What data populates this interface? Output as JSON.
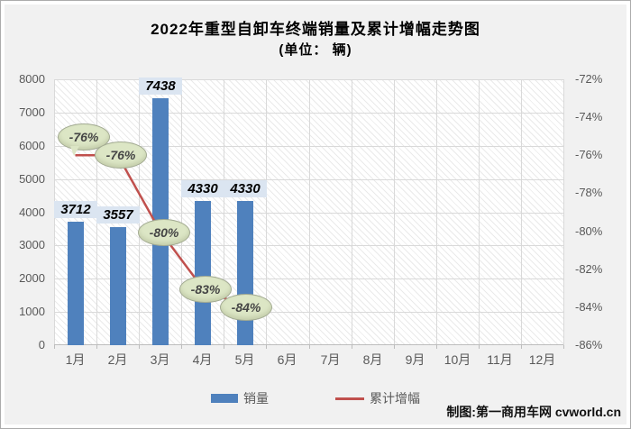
{
  "title": "2022年重型自卸车终端销量及累计增幅走势图",
  "subtitle": "(单位： 辆)",
  "watermark": "制图:第一商用车网 cvworld.cn",
  "legend": {
    "bars": "销量",
    "line": "累计增幅"
  },
  "colors": {
    "bar": "#4f81bd",
    "line": "#c0504d",
    "bar_label_bg": "#dbe5f1",
    "bubble_fill": "#dce6c5",
    "bubble_border": "#a3ab92",
    "axis_text": "#595959",
    "grid": "#d9d9d9",
    "canvas_bg": "#f1f1f1"
  },
  "chart_data": {
    "type": "bar+line combo",
    "categories": [
      "1月",
      "2月",
      "3月",
      "4月",
      "5月",
      "6月",
      "7月",
      "8月",
      "9月",
      "10月",
      "11月",
      "12月"
    ],
    "series": [
      {
        "name": "销量",
        "type": "bar",
        "axis": "left",
        "values": [
          3712,
          3557,
          7438,
          4330,
          4330,
          null,
          null,
          null,
          null,
          null,
          null,
          null
        ]
      },
      {
        "name": "累计增幅",
        "type": "line",
        "axis": "right",
        "values_pct": [
          -76,
          -76,
          -80,
          -83,
          -84,
          null,
          null,
          null,
          null,
          null,
          null,
          null
        ]
      }
    ],
    "bar_labels": [
      "3712",
      "3557",
      "7438",
      "4330",
      "4330"
    ],
    "line_labels": [
      "-76%",
      "-76%",
      "-80%",
      "-83%",
      "-84%"
    ],
    "left_axis": {
      "max": 8000,
      "min": 0,
      "step": 1000,
      "ticks": [
        "8000",
        "7000",
        "6000",
        "5000",
        "4000",
        "3000",
        "2000",
        "1000",
        "0"
      ]
    },
    "right_axis": {
      "max": -72,
      "min": -86,
      "step": -2,
      "ticks": [
        "-72%",
        "-74%",
        "-76%",
        "-78%",
        "-80%",
        "-82%",
        "-84%",
        "-86%"
      ]
    },
    "grid": true,
    "legend_position": "bottom"
  }
}
